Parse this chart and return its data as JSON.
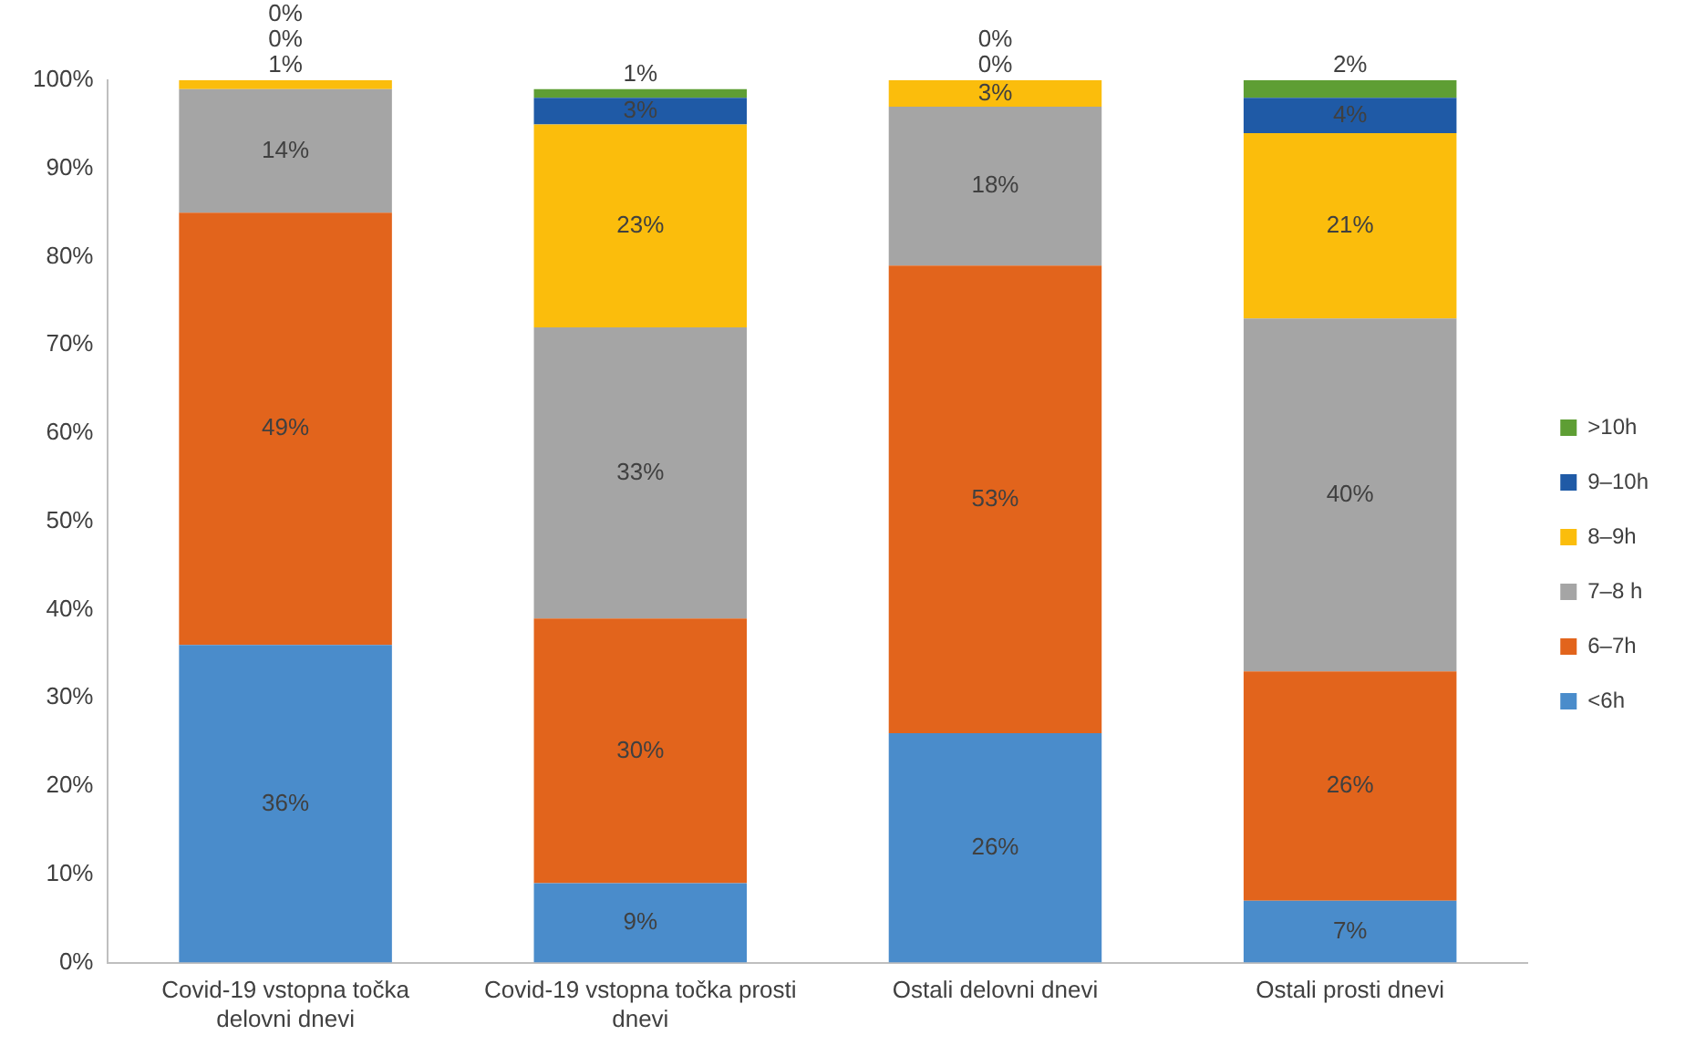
{
  "chart_data": {
    "type": "bar",
    "stacked": true,
    "categories": [
      "Covid-19 vstopna točka delovni dnevi",
      "Covid-19 vstopna točka prosti dnevi",
      "Ostali delovni dnevi",
      "Ostali prosti dnevi"
    ],
    "series": [
      {
        "name": "<6h",
        "color": "#4a8ccb",
        "values": [
          36,
          9,
          26,
          7
        ],
        "value_labels": [
          "36%",
          "9%",
          "26%",
          "7%"
        ]
      },
      {
        "name": "6–7h",
        "color": "#e2641c",
        "values": [
          49,
          30,
          53,
          26
        ],
        "value_labels": [
          "49%",
          "30%",
          "53%",
          "26%"
        ]
      },
      {
        "name": "7–8 h",
        "color": "#a5a5a5",
        "values": [
          14,
          33,
          18,
          40
        ],
        "value_labels": [
          "14%",
          "33%",
          "18%",
          "40%"
        ]
      },
      {
        "name": "8–9h",
        "color": "#fbbd0c",
        "values": [
          1,
          23,
          3,
          21
        ],
        "value_labels": [
          "1%",
          "23%",
          "3%",
          "21%"
        ]
      },
      {
        "name": "9–10h",
        "color": "#1f5aa6",
        "values": [
          0,
          3,
          0,
          4
        ],
        "value_labels": [
          "0%",
          "3%",
          "0%",
          "4%"
        ]
      },
      {
        "name": ">10h",
        "color": "#5e9e34",
        "values": [
          0,
          1,
          0,
          2
        ],
        "value_labels": [
          "0%",
          "1%",
          "0%",
          "2%"
        ]
      }
    ],
    "ylim": [
      0,
      100
    ],
    "yticks": [
      {
        "value": 0,
        "label": "0%"
      },
      {
        "value": 10,
        "label": "10%"
      },
      {
        "value": 20,
        "label": "20%"
      },
      {
        "value": 30,
        "label": "30%"
      },
      {
        "value": 40,
        "label": "40%"
      },
      {
        "value": 50,
        "label": "50%"
      },
      {
        "value": 60,
        "label": "60%"
      },
      {
        "value": 70,
        "label": "70%"
      },
      {
        "value": 80,
        "label": "80%"
      },
      {
        "value": 90,
        "label": "90%"
      },
      {
        "value": 100,
        "label": "100%"
      }
    ],
    "grid": false,
    "legend": "right"
  }
}
